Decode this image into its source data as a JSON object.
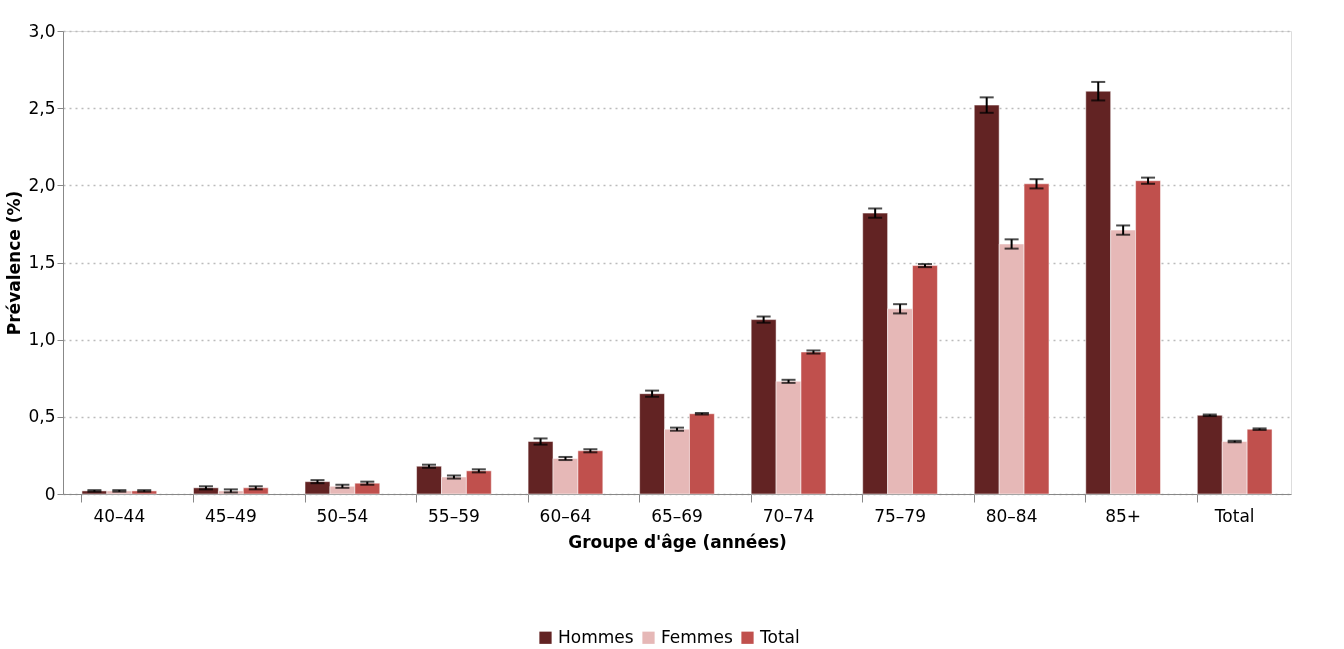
{
  "chart_data": {
    "type": "bar",
    "xlabel": "Groupe d'âge (années)",
    "ylabel": "Prévalence (%)",
    "categories": [
      "40–44",
      "45–49",
      "50–54",
      "55–59",
      "60–64",
      "65–69",
      "70–74",
      "75–79",
      "80–84",
      "85+",
      "Total"
    ],
    "series": [
      {
        "name": "Hommes",
        "color": "#622323",
        "values": [
          0.02,
          0.04,
          0.08,
          0.18,
          0.34,
          0.65,
          1.13,
          1.82,
          2.52,
          2.61,
          0.51
        ],
        "errors": [
          0.005,
          0.01,
          0.01,
          0.01,
          0.02,
          0.02,
          0.02,
          0.03,
          0.05,
          0.06,
          0.005
        ]
      },
      {
        "name": "Femmes",
        "color": "#e6b8b7",
        "values": [
          0.02,
          0.02,
          0.05,
          0.11,
          0.23,
          0.42,
          0.73,
          1.2,
          1.62,
          1.71,
          0.34
        ],
        "errors": [
          0.005,
          0.01,
          0.01,
          0.01,
          0.01,
          0.01,
          0.01,
          0.03,
          0.03,
          0.03,
          0.005
        ]
      },
      {
        "name": "Total",
        "color": "#c0504d",
        "values": [
          0.02,
          0.04,
          0.07,
          0.15,
          0.28,
          0.52,
          0.92,
          1.48,
          2.01,
          2.03,
          0.42
        ],
        "errors": [
          0.005,
          0.01,
          0.01,
          0.01,
          0.01,
          0.005,
          0.01,
          0.01,
          0.03,
          0.02,
          0.005
        ]
      }
    ],
    "ylim": [
      0,
      3.0
    ],
    "yticks": [
      0,
      {
        "value": 0.5,
        "label": "0,5"
      },
      {
        "value": 1.0,
        "label": "1,0"
      },
      {
        "value": 1.5,
        "label": "1,5"
      },
      {
        "value": 2.0,
        "label": "2,0"
      },
      {
        "value": 2.5,
        "label": "2,5"
      },
      {
        "value": 3.0,
        "label": "3,0"
      }
    ],
    "grid": "y",
    "legend": "bottom"
  }
}
